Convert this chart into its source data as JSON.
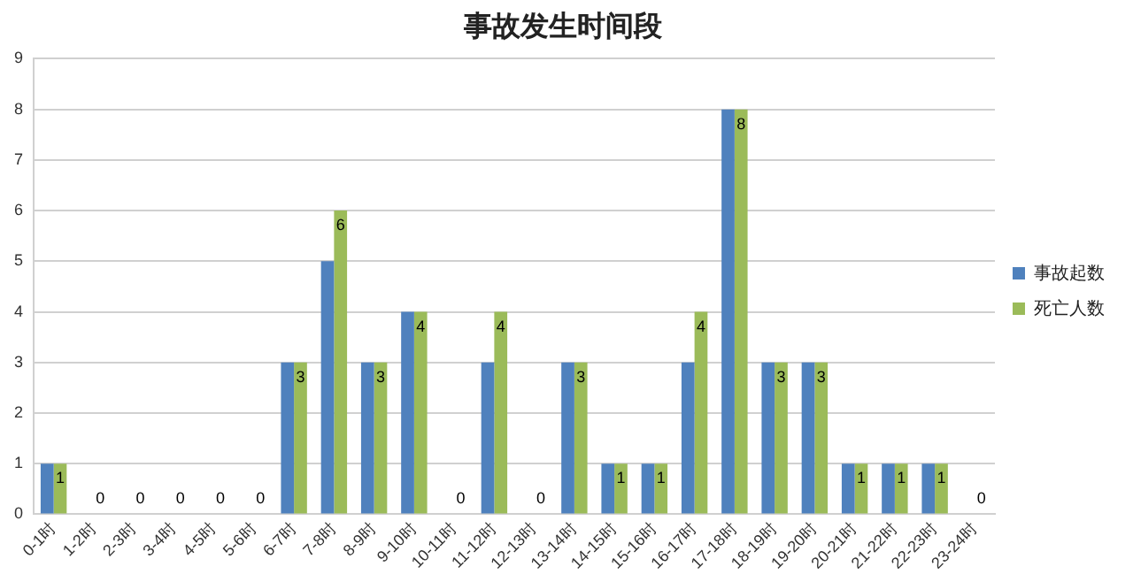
{
  "chart_data": {
    "type": "bar",
    "title": "事故发生时间段",
    "categories": [
      "0-1时",
      "1-2时",
      "2-3时",
      "3-4时",
      "4-5时",
      "5-6时",
      "6-7时",
      "7-8时",
      "8-9时",
      "9-10时",
      "10-11时",
      "11-12时",
      "12-13时",
      "13-14时",
      "14-15时",
      "15-16时",
      "16-17时",
      "17-18时",
      "18-19时",
      "19-20时",
      "20-21时",
      "21-22时",
      "22-23时",
      "23-24时"
    ],
    "series": [
      {
        "name": "事故起数",
        "color": "#4f81bd",
        "values": [
          1,
          0,
          0,
          0,
          0,
          0,
          3,
          5,
          3,
          4,
          0,
          3,
          0,
          3,
          1,
          1,
          3,
          8,
          3,
          3,
          1,
          1,
          1,
          0
        ]
      },
      {
        "name": "死亡人数",
        "color": "#9bbb59",
        "values": [
          1,
          0,
          0,
          0,
          0,
          0,
          3,
          6,
          3,
          4,
          0,
          4,
          0,
          3,
          1,
          1,
          4,
          8,
          3,
          3,
          1,
          1,
          1,
          0
        ],
        "value_labels": [
          "1",
          "0",
          "0",
          "0",
          "0",
          "0",
          "3",
          "6",
          "3",
          "4",
          "0",
          "4",
          "0",
          "3",
          "1",
          "1",
          "4",
          "8",
          "3",
          "3",
          "1",
          "1",
          "1",
          "0"
        ]
      }
    ],
    "ylim": [
      0,
      9
    ],
    "yticks": [
      0,
      1,
      2,
      3,
      4,
      5,
      6,
      7,
      8,
      9
    ],
    "grid": "y",
    "legend": "right"
  }
}
